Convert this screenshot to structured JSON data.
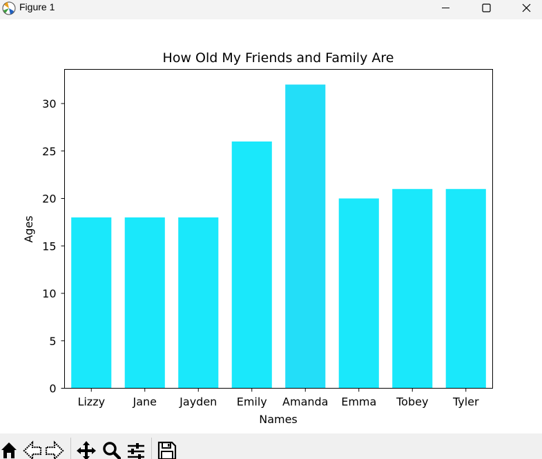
{
  "window": {
    "title": "Figure 1",
    "controls": [
      "minimize",
      "maximize",
      "close"
    ]
  },
  "toolbar": {
    "tools": [
      "home-icon",
      "back-icon",
      "forward-icon",
      "pan-icon",
      "zoom-icon",
      "configure-subplots-icon",
      "save-icon"
    ]
  },
  "colors": {
    "bar": "#1ae8fb",
    "bar_highlight": "#23def8"
  },
  "chart_data": {
    "type": "bar",
    "title": "How Old My Friends and Family Are",
    "xlabel": "Names",
    "ylabel": "Ages",
    "categories": [
      "Lizzy",
      "Jane",
      "Jayden",
      "Emily",
      "Amanda",
      "Emma",
      "Tobey",
      "Tyler"
    ],
    "values": [
      18,
      18,
      18,
      26,
      32,
      20,
      21,
      21
    ],
    "ylim": [
      0,
      33.6
    ],
    "yticks": [
      0,
      5,
      10,
      15,
      20,
      25,
      30
    ],
    "grid": false,
    "legend": false
  }
}
